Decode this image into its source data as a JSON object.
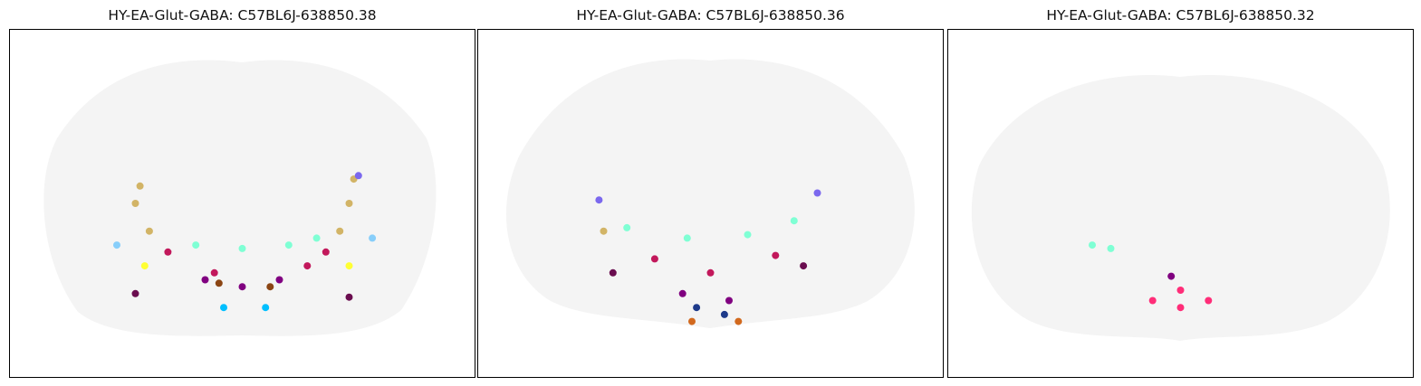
{
  "figure": {
    "panels": [
      {
        "title": "HY-EA-Glut-GABA: C57BL6J-638850.38"
      },
      {
        "title": "HY-EA-Glut-GABA: C57BL6J-638850.36"
      },
      {
        "title": "HY-EA-Glut-GABA: C57BL6J-638850.32"
      }
    ]
  },
  "chart_data": [
    {
      "type": "scatter",
      "title": "HY-EA-Glut-GABA: C57BL6J-638850.38",
      "xlabel": "",
      "ylabel": "",
      "axes_ticks": "none",
      "grid": false,
      "background_color": "#f4f4f4",
      "series": [
        {
          "color": "#d2b466",
          "points": [
            [
              0.28,
              0.45
            ],
            [
              0.27,
              0.5
            ],
            [
              0.3,
              0.58
            ],
            [
              0.74,
              0.43
            ],
            [
              0.73,
              0.5
            ],
            [
              0.71,
              0.58
            ]
          ]
        },
        {
          "color": "#7fffd4",
          "points": [
            [
              0.4,
              0.62
            ],
            [
              0.5,
              0.63
            ],
            [
              0.6,
              0.62
            ],
            [
              0.66,
              0.6
            ]
          ]
        },
        {
          "color": "#c2185b",
          "points": [
            [
              0.34,
              0.64
            ],
            [
              0.44,
              0.7
            ],
            [
              0.64,
              0.68
            ],
            [
              0.68,
              0.64
            ]
          ]
        },
        {
          "color": "#800080",
          "points": [
            [
              0.42,
              0.72
            ],
            [
              0.5,
              0.74
            ],
            [
              0.58,
              0.72
            ]
          ]
        },
        {
          "color": "#6a0d4f",
          "points": [
            [
              0.27,
              0.76
            ],
            [
              0.73,
              0.77
            ]
          ]
        },
        {
          "color": "#00bfff",
          "points": [
            [
              0.46,
              0.8
            ],
            [
              0.55,
              0.8
            ]
          ]
        },
        {
          "color": "#ffff33",
          "points": [
            [
              0.29,
              0.68
            ],
            [
              0.73,
              0.68
            ]
          ]
        },
        {
          "color": "#8b4513",
          "points": [
            [
              0.45,
              0.73
            ],
            [
              0.56,
              0.74
            ]
          ]
        },
        {
          "color": "#87cefa",
          "points": [
            [
              0.23,
              0.62
            ],
            [
              0.78,
              0.6
            ]
          ]
        },
        {
          "color": "#7b68ee",
          "points": [
            [
              0.75,
              0.42
            ]
          ]
        }
      ]
    },
    {
      "type": "scatter",
      "title": "HY-EA-Glut-GABA: C57BL6J-638850.36",
      "xlabel": "",
      "ylabel": "",
      "axes_ticks": "none",
      "grid": false,
      "background_color": "#f4f4f4",
      "series": [
        {
          "color": "#7b68ee",
          "points": [
            [
              0.26,
              0.49
            ],
            [
              0.73,
              0.47
            ]
          ]
        },
        {
          "color": "#7fffd4",
          "points": [
            [
              0.32,
              0.57
            ],
            [
              0.45,
              0.6
            ],
            [
              0.58,
              0.59
            ],
            [
              0.68,
              0.55
            ]
          ]
        },
        {
          "color": "#c2185b",
          "points": [
            [
              0.38,
              0.66
            ],
            [
              0.5,
              0.7
            ],
            [
              0.64,
              0.65
            ]
          ]
        },
        {
          "color": "#800080",
          "points": [
            [
              0.44,
              0.76
            ],
            [
              0.54,
              0.78
            ]
          ]
        },
        {
          "color": "#6a0d4f",
          "points": [
            [
              0.29,
              0.7
            ],
            [
              0.7,
              0.68
            ]
          ]
        },
        {
          "color": "#1e3a8a",
          "points": [
            [
              0.47,
              0.8
            ],
            [
              0.53,
              0.82
            ]
          ]
        },
        {
          "color": "#d2691e",
          "points": [
            [
              0.46,
              0.84
            ],
            [
              0.56,
              0.84
            ]
          ]
        },
        {
          "color": "#d2b466",
          "points": [
            [
              0.27,
              0.58
            ]
          ]
        }
      ]
    },
    {
      "type": "scatter",
      "title": "HY-EA-Glut-GABA: C57BL6J-638850.32",
      "xlabel": "",
      "ylabel": "",
      "axes_ticks": "none",
      "grid": false,
      "background_color": "#f4f4f4",
      "series": [
        {
          "color": "#ff2d78",
          "points": [
            [
              0.44,
              0.78
            ],
            [
              0.5,
              0.8
            ],
            [
              0.56,
              0.78
            ],
            [
              0.5,
              0.75
            ]
          ]
        },
        {
          "color": "#7fffd4",
          "points": [
            [
              0.31,
              0.62
            ],
            [
              0.35,
              0.63
            ]
          ]
        },
        {
          "color": "#800080",
          "points": [
            [
              0.48,
              0.71
            ]
          ]
        }
      ]
    }
  ]
}
